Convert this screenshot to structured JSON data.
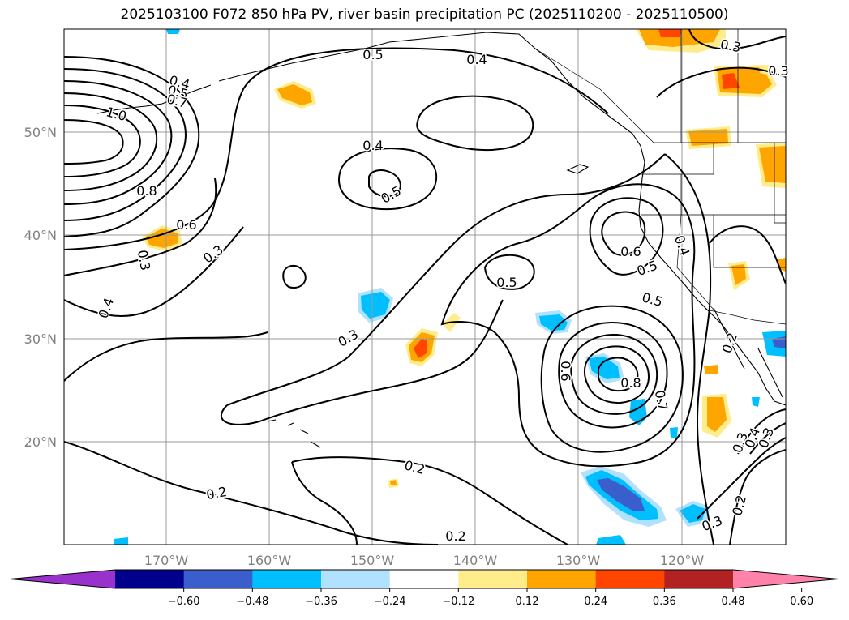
{
  "title": "2025103100 F072 850 hPa PV, river basin precipitation PC (2025110200 - 2025110500)",
  "map": {
    "lon_ticks": [
      "170°W",
      "160°W",
      "150°W",
      "140°W",
      "130°W",
      "120°W"
    ],
    "lat_ticks": [
      "50°N",
      "40°N",
      "30°N",
      "20°N"
    ],
    "gridlines": true
  },
  "contour_labels": [
    {
      "text": "0.5",
      "id": "c1"
    },
    {
      "text": "0.4",
      "id": "c2"
    },
    {
      "text": "0.4",
      "id": "c3"
    },
    {
      "text": "0.5",
      "id": "c4"
    },
    {
      "text": "0.7",
      "id": "c5"
    },
    {
      "text": "1.0",
      "id": "c6"
    },
    {
      "text": "0.4",
      "id": "c7"
    },
    {
      "text": "0.5",
      "id": "c8"
    },
    {
      "text": "0.8",
      "id": "c9"
    },
    {
      "text": "0.6",
      "id": "c10"
    },
    {
      "text": "0.3",
      "id": "c11"
    },
    {
      "text": "0.3",
      "id": "c12"
    },
    {
      "text": "0.4",
      "id": "c13"
    },
    {
      "text": "0.3",
      "id": "c14"
    },
    {
      "text": "0.3",
      "id": "c15"
    },
    {
      "text": "0.6",
      "id": "c16"
    },
    {
      "text": "0.5",
      "id": "c17"
    },
    {
      "text": "0.4",
      "id": "c18"
    },
    {
      "text": "0.5",
      "id": "c19"
    },
    {
      "text": "0.5",
      "id": "c20"
    },
    {
      "text": "0.6",
      "id": "c21"
    },
    {
      "text": "0.8",
      "id": "c22"
    },
    {
      "text": "0.7",
      "id": "c23"
    },
    {
      "text": "0.2",
      "id": "c24"
    },
    {
      "text": "0.2",
      "id": "c25"
    },
    {
      "text": "0.2",
      "id": "c26"
    },
    {
      "text": "0.2",
      "id": "c27"
    },
    {
      "text": "0.3",
      "id": "c28"
    },
    {
      "text": "0.2",
      "id": "c29"
    },
    {
      "text": "0.3",
      "id": "c30"
    },
    {
      "text": "0.4",
      "id": "c31"
    },
    {
      "text": "0.3",
      "id": "c32"
    },
    {
      "text": "0.3",
      "id": "c33"
    }
  ],
  "colorbar": {
    "ticks": [
      "−0.60",
      "−0.48",
      "−0.36",
      "−0.24",
      "−0.12",
      "0.12",
      "0.24",
      "0.36",
      "0.48",
      "0.60"
    ],
    "colors": [
      "#9932cc",
      "#00008b",
      "#3a5fcd",
      "#00bfff",
      "#b0e2ff",
      "#ffffff",
      "#ffec8b",
      "#ffa500",
      "#ff4500",
      "#b22222",
      "#ff82ab"
    ]
  },
  "fill_colors": {
    "neg_light": "#b0e2ff",
    "neg_mid": "#00bfff",
    "neg_strong": "#3a5fcd",
    "pos_light": "#ffec8b",
    "pos_mid": "#ffa500",
    "pos_strong": "#ff4500"
  }
}
